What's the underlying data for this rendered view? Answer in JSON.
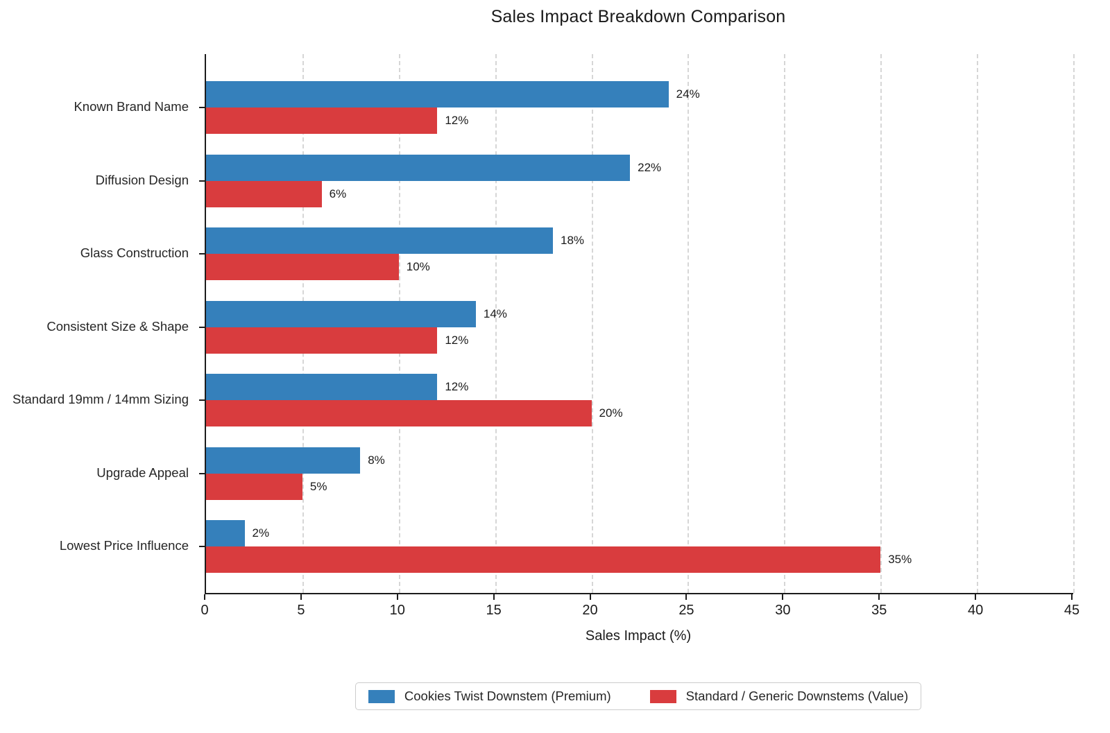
{
  "title": "Sales Impact Breakdown Comparison",
  "chart_data": {
    "type": "bar",
    "orientation": "horizontal",
    "title": "Sales Impact Breakdown Comparison",
    "categories": [
      "Known Brand Name",
      "Diffusion Design",
      "Glass Construction",
      "Consistent Size & Shape",
      "Standard 19mm / 14mm Sizing",
      "Upgrade Appeal",
      "Lowest Price Influence"
    ],
    "series": [
      {
        "name": "Cookies Twist Downstem (Premium)",
        "color": "#3580bb",
        "values": [
          24,
          22,
          18,
          14,
          12,
          8,
          2
        ]
      },
      {
        "name": "Standard / Generic Downstems (Value)",
        "color": "#d93c3e",
        "values": [
          12,
          6,
          10,
          12,
          20,
          5,
          35
        ]
      }
    ],
    "value_suffix": "%",
    "xlabel": "Sales Impact (%)",
    "xlim": [
      0,
      45
    ],
    "xticks": [
      0,
      5,
      10,
      15,
      20,
      25,
      30,
      35,
      40,
      45
    ],
    "grid": "vertical-dashed",
    "legend_position": "bottom-center"
  }
}
